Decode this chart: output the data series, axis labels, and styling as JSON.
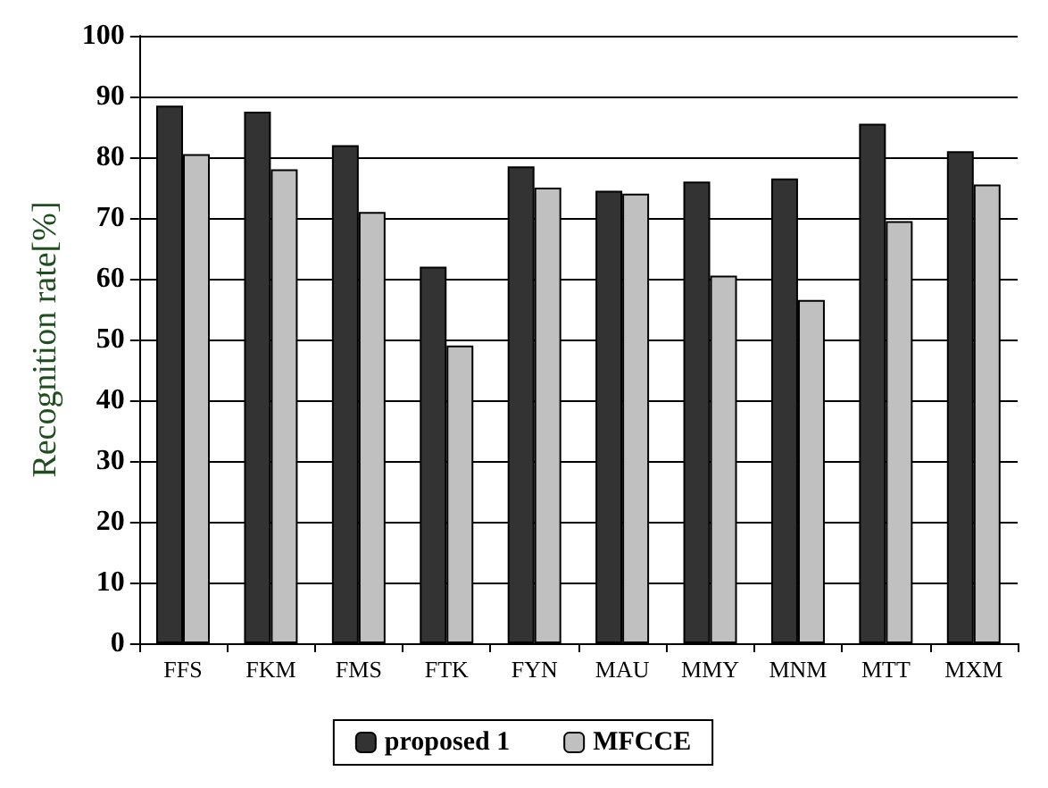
{
  "chart_data": {
    "type": "bar",
    "ylabel": "Recognition rate[%]",
    "categories": [
      "FFS",
      "FKM",
      "FMS",
      "FTK",
      "FYN",
      "MAU",
      "MMY",
      "MNM",
      "MTT",
      "MXM"
    ],
    "series": [
      {
        "name": "proposed 1",
        "color": "#333333",
        "values": [
          88.5,
          87.5,
          82,
          62,
          78.5,
          74.5,
          76,
          76.5,
          85.5,
          81
        ]
      },
      {
        "name": "MFCCE",
        "color": "#c0c0c0",
        "values": [
          80.5,
          78,
          71,
          49,
          75,
          74,
          60.5,
          56.5,
          69.5,
          75.5
        ]
      }
    ],
    "ylim": [
      0,
      100
    ],
    "yticks": [
      0,
      10,
      20,
      30,
      40,
      50,
      60,
      70,
      80,
      90,
      100
    ],
    "grid": "y",
    "legend": "bottom"
  }
}
